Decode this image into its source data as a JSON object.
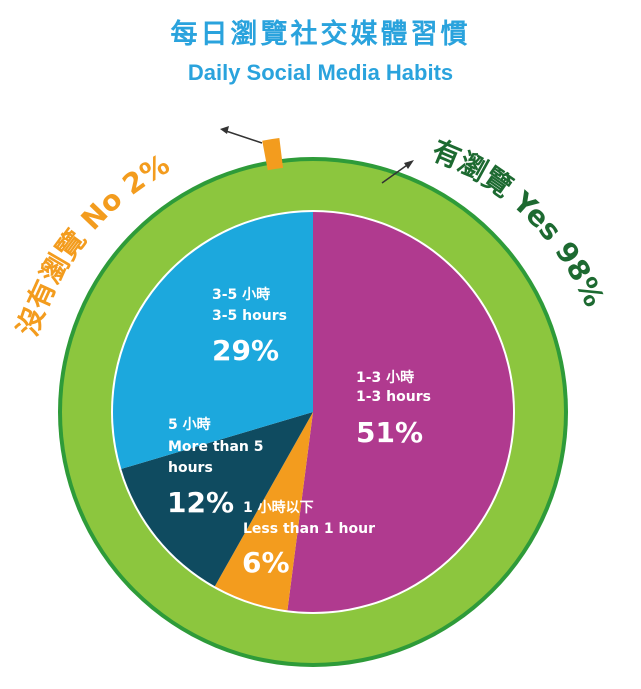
{
  "title": {
    "zh": "每日瀏覽社交媒體習慣",
    "en": "Daily Social Media Habits"
  },
  "chart_data": [
    {
      "type": "pie",
      "role": "outer-ring",
      "slices": [
        {
          "label": "有瀏覽 Yes 98%",
          "value": 98,
          "color": "#8cc63e"
        },
        {
          "label": "沒有瀏覽 No 2%",
          "value": 2,
          "color": "#f39c1e"
        }
      ]
    },
    {
      "type": "pie",
      "role": "inner-pie",
      "slices": [
        {
          "label_zh": "1-3 小時",
          "label_en": "1-3 hours",
          "percent_label": "51%",
          "value": 51,
          "color": "#b03a8f"
        },
        {
          "label_zh": "1 小時以下",
          "label_en": "Less than 1 hour",
          "percent_label": "6%",
          "value": 6,
          "color": "#f39c1e"
        },
        {
          "label_zh": "5 小時",
          "label_en": "More than 5 hours",
          "percent_label": "12%",
          "value": 12,
          "color": "#0f4b60"
        },
        {
          "label_zh": "3-5 小時",
          "label_en": "3-5 hours",
          "percent_label": "29%",
          "value": 29,
          "color": "#1ca8dd"
        }
      ]
    }
  ],
  "colors": {
    "ring_border": "#2e9b39",
    "yes_label": "#1d6a31",
    "no_label": "#f39c1e",
    "arrow": "#333333"
  }
}
